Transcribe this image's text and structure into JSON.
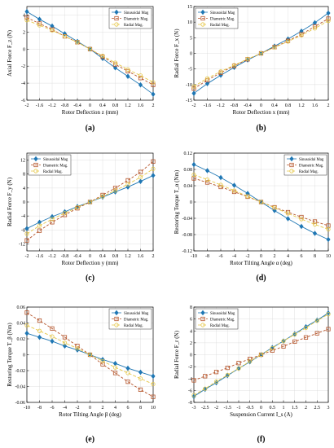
{
  "colors": {
    "sinusoidal": "#1f77b4",
    "diametric": "#b5542a",
    "radial": "#e6c84a"
  },
  "chart_data": [
    {
      "type": "line",
      "panel_label": "(a)",
      "xlabel": "Rotor Deflection z (mm)",
      "ylabel": "Axial Force F_z (N)",
      "xlim": [
        -2,
        2
      ],
      "ylim": [
        -6,
        5
      ],
      "xticks": [
        "-2",
        "-1.6",
        "-1.2",
        "-0.8",
        "-0.4",
        "0",
        "0.4",
        "0.8",
        "1.2",
        "1.6",
        "2"
      ],
      "yticks": [
        "-6",
        "-4",
        "-2",
        "0",
        "2",
        "4"
      ],
      "legend_position": "top-right",
      "x": [
        -2,
        -1.6,
        -1.2,
        -0.8,
        -0.4,
        0,
        0.4,
        0.8,
        1.2,
        1.6,
        2
      ],
      "series": [
        {
          "name": "Sinusoidal Mag",
          "marker": "diamond",
          "values": [
            4.4,
            3.5,
            2.7,
            1.8,
            0.9,
            0,
            -1.1,
            -2.2,
            -3.2,
            -4.2,
            -5.3
          ]
        },
        {
          "name": "Diametric Mag.",
          "marker": "square",
          "values": [
            3.7,
            3.0,
            2.3,
            1.5,
            0.8,
            0,
            -0.9,
            -1.8,
            -2.6,
            -3.4,
            -4.2
          ]
        },
        {
          "name": "Radial Mag.",
          "marker": "circle",
          "values": [
            3.4,
            2.8,
            2.2,
            1.5,
            0.8,
            0,
            -0.8,
            -1.6,
            -2.4,
            -3.1,
            -3.9
          ]
        }
      ]
    },
    {
      "type": "line",
      "panel_label": "(b)",
      "xlabel": "Rotor Deflection x (mm)",
      "ylabel": "Radial Force F_x (N)",
      "xlim": [
        -2,
        2
      ],
      "ylim": [
        -15,
        15
      ],
      "xticks": [
        "-2",
        "-1.6",
        "-1.2",
        "-0.8",
        "-0.4",
        "0",
        "0.4",
        "0.8",
        "1.2",
        "1.6",
        "2"
      ],
      "yticks": [
        "-15",
        "-10",
        "-5",
        "0",
        "5",
        "10",
        "15"
      ],
      "legend_position": "top-left",
      "x": [
        -2,
        -1.6,
        -1.2,
        -0.8,
        -0.4,
        0,
        0.4,
        0.8,
        1.2,
        1.6,
        2
      ],
      "series": [
        {
          "name": "Sinusoidal Mag",
          "marker": "diamond",
          "values": [
            -12.8,
            -9.7,
            -7.0,
            -4.5,
            -2.1,
            0,
            2.3,
            4.6,
            7.1,
            9.8,
            12.9
          ]
        },
        {
          "name": "Diametric Mag.",
          "marker": "square",
          "values": [
            -11.3,
            -8.6,
            -6.2,
            -4.0,
            -1.9,
            0,
            2.0,
            4.0,
            6.1,
            8.6,
            11.1
          ]
        },
        {
          "name": "Radial Mag.",
          "marker": "circle",
          "values": [
            -10.6,
            -8.0,
            -5.8,
            -3.8,
            -1.8,
            0,
            1.9,
            3.8,
            5.8,
            8.0,
            10.4
          ]
        }
      ]
    },
    {
      "type": "line",
      "panel_label": "(c)",
      "xlabel": "Rotor Deflection y (mm)",
      "ylabel": "Radial Force F_y (N)",
      "xlim": [
        -2,
        2
      ],
      "ylim": [
        -14,
        14
      ],
      "xticks": [
        "-2",
        "-1.6",
        "-1.2",
        "-0.8",
        "-0.4",
        "0",
        "0.4",
        "0.8",
        "1.2",
        "1.6",
        "2"
      ],
      "yticks": [
        "-12",
        "-8",
        "-4",
        "0",
        "4",
        "8",
        "12"
      ],
      "legend_position": "top-left",
      "x": [
        -2,
        -1.6,
        -1.2,
        -0.8,
        -0.4,
        0,
        0.4,
        0.8,
        1.2,
        1.6,
        2
      ],
      "series": [
        {
          "name": "Sinusoidal Mag",
          "marker": "diamond",
          "values": [
            -7.6,
            -5.8,
            -4.2,
            -2.8,
            -1.3,
            0,
            1.4,
            2.9,
            4.3,
            5.9,
            7.6
          ]
        },
        {
          "name": "Diametric Mag.",
          "marker": "square",
          "values": [
            -11.0,
            -8.2,
            -5.8,
            -3.7,
            -1.8,
            0,
            2.0,
            4.0,
            6.2,
            8.6,
            11.6
          ]
        },
        {
          "name": "Radial Mag.",
          "marker": "circle",
          "values": [
            -9.1,
            -6.8,
            -4.9,
            -3.2,
            -1.5,
            0,
            1.6,
            3.3,
            5.1,
            7.1,
            9.5
          ]
        }
      ]
    },
    {
      "type": "line",
      "panel_label": "(d)",
      "xlabel": "Rotor Tilting Angle α (deg)",
      "ylabel": "Restoring Torque T_α (Nm)",
      "xlim": [
        -10,
        10
      ],
      "ylim": [
        -0.12,
        0.12
      ],
      "xticks": [
        "-10",
        "-8",
        "-6",
        "-4",
        "-2",
        "0",
        "2",
        "4",
        "6",
        "8",
        "10"
      ],
      "yticks": [
        "-0.12",
        "-0.08",
        "-0.04",
        "0",
        "0.04",
        "0.08",
        "0.12"
      ],
      "legend_position": "top-right",
      "x": [
        -10,
        -8,
        -6,
        -4,
        -2,
        0,
        2,
        4,
        6,
        8,
        10
      ],
      "series": [
        {
          "name": "Sinusoidal Mag",
          "marker": "diamond",
          "values": [
            0.092,
            0.077,
            0.06,
            0.041,
            0.021,
            0,
            -0.021,
            -0.041,
            -0.06,
            -0.077,
            -0.092
          ]
        },
        {
          "name": "Diametric Mag.",
          "marker": "square",
          "values": [
            0.058,
            0.048,
            0.037,
            0.025,
            0.013,
            0,
            -0.013,
            -0.025,
            -0.037,
            -0.048,
            -0.058
          ]
        },
        {
          "name": "Radial Mag.",
          "marker": "circle",
          "values": [
            0.067,
            0.055,
            0.042,
            0.028,
            0.014,
            0,
            -0.014,
            -0.028,
            -0.042,
            -0.055,
            -0.067
          ]
        }
      ]
    },
    {
      "type": "line",
      "panel_label": "(e)",
      "xlabel": "Rotor Tilting Angle β (deg)",
      "ylabel": "Restoring Torque T_β (Nm)",
      "xlim": [
        -10,
        10
      ],
      "ylim": [
        -0.06,
        0.06
      ],
      "xticks": [
        "-10",
        "-8",
        "-6",
        "-4",
        "-2",
        "0",
        "2",
        "4",
        "6",
        "8",
        "10"
      ],
      "yticks": [
        "-0.06",
        "-0.04",
        "-0.02",
        "0",
        "0.02",
        "0.04",
        "0.06"
      ],
      "legend_position": "top-right",
      "x": [
        -10,
        -8,
        -6,
        -4,
        -2,
        0,
        2,
        4,
        6,
        8,
        10
      ],
      "series": [
        {
          "name": "Sinusoidal Mag",
          "marker": "diamond",
          "values": [
            0.027,
            0.022,
            0.017,
            0.011,
            0.006,
            0,
            -0.006,
            -0.011,
            -0.017,
            -0.022,
            -0.027
          ]
        },
        {
          "name": "Diametric Mag.",
          "marker": "square",
          "values": [
            0.053,
            0.043,
            0.033,
            0.022,
            0.011,
            0,
            -0.012,
            -0.023,
            -0.034,
            -0.044,
            -0.053
          ]
        },
        {
          "name": "Radial Mag.",
          "marker": "circle",
          "values": [
            0.037,
            0.03,
            0.023,
            0.015,
            0.008,
            0,
            -0.008,
            -0.016,
            -0.023,
            -0.03,
            -0.037
          ]
        }
      ]
    },
    {
      "type": "line",
      "panel_label": "(f)",
      "xlabel": "Suspension Current I_s (A)",
      "ylabel": "Radial Force F_r (N)",
      "xlim": [
        -3,
        3
      ],
      "ylim": [
        -8,
        8
      ],
      "xticks": [
        "-3",
        "-2.5",
        "-2",
        "-1.5",
        "-1",
        "-0.5",
        "0",
        "0.5",
        "1",
        "1.5",
        "2",
        "2.5",
        "3"
      ],
      "yticks": [
        "-8",
        "-6",
        "-4",
        "-2",
        "0",
        "2",
        "4",
        "6",
        "8"
      ],
      "legend_position": "top-left",
      "x": [
        -3,
        -2.5,
        -2,
        -1.5,
        -1,
        -0.5,
        0,
        0.5,
        1,
        1.5,
        2,
        2.5,
        3
      ],
      "series": [
        {
          "name": "Sinusoidal Mag",
          "marker": "diamond",
          "values": [
            -7.0,
            -5.8,
            -4.7,
            -3.5,
            -2.3,
            -1.2,
            0,
            1.2,
            2.3,
            3.5,
            4.7,
            5.8,
            7.0
          ]
        },
        {
          "name": "Diametric Mag.",
          "marker": "square",
          "values": [
            -4.3,
            -3.6,
            -2.9,
            -2.2,
            -1.4,
            -0.7,
            0,
            0.7,
            1.4,
            2.2,
            2.9,
            3.6,
            4.3
          ]
        },
        {
          "name": "Radial Mag.",
          "marker": "circle",
          "values": [
            -6.8,
            -5.7,
            -4.5,
            -3.4,
            -2.3,
            -1.1,
            0,
            1.1,
            2.3,
            3.4,
            4.5,
            5.7,
            6.8
          ]
        }
      ]
    }
  ]
}
